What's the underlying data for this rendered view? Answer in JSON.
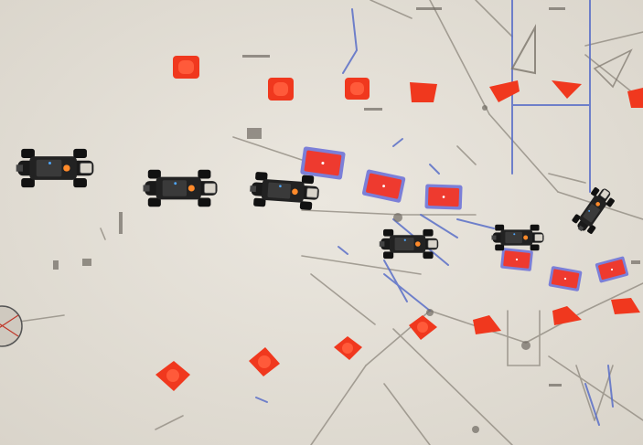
{
  "scene": {
    "floor_color": "#e6e2da",
    "cone_color": "#f0381e",
    "box_color": "#ee3a2f",
    "box_border_color": "#7b7fd8",
    "car_body_color": "#151515",
    "led_color": "#ff8a2a",
    "tape_color": "#5a6fc8"
  }
}
